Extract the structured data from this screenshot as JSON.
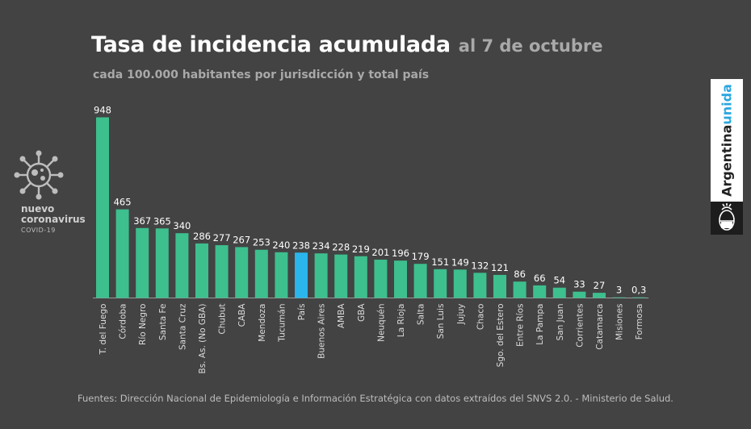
{
  "header": {
    "title": "Tasa de incidencia acumulada",
    "date": "al 7 de octubre",
    "subtitle": "cada 100.000 habitantes por jurisdicción y total país"
  },
  "brand": {
    "icon": "virus-icon",
    "line1": "nuevo",
    "line2": "coronavirus",
    "line3": "COVID-19"
  },
  "badge": {
    "text1": "Argentina",
    "text2": "unida",
    "accent_color": "#29a6e0",
    "icon": "coat-of-arms-icon"
  },
  "footer": {
    "source": "Fuentes: Dirección Nacional de Epidemiología e Información Estratégica con datos extraídos del SNVS 2.0. - Ministerio de Salud."
  },
  "chart_data": {
    "type": "bar",
    "categories": [
      "T. del Fuego",
      "Córdoba",
      "Río Negro",
      "Santa Fe",
      "Santa Cruz",
      "Bs. As. (No GBA)",
      "Chubut",
      "CABA",
      "Mendoza",
      "Tucumán",
      "País",
      "Buenos Aires",
      "AMBA",
      "GBA",
      "Neuquén",
      "La Rioja",
      "Salta",
      "San Luis",
      "Jujuy",
      "Chaco",
      "Sgo. del Estero",
      "Entre Ríos",
      "La Pampa",
      "San Juan",
      "Corrientes",
      "Catamarca",
      "Misiones",
      "Formosa"
    ],
    "values": [
      948,
      465,
      367,
      365,
      340,
      286,
      277,
      267,
      253,
      240,
      238,
      234,
      228,
      219,
      201,
      196,
      179,
      151,
      149,
      132,
      121,
      86,
      66,
      54,
      33,
      27,
      3,
      0.3
    ],
    "labels": [
      "948",
      "465",
      "367",
      "365",
      "340",
      "286",
      "277",
      "267",
      "253",
      "240",
      "238",
      "234",
      "228",
      "219",
      "201",
      "196",
      "179",
      "151",
      "149",
      "132",
      "121",
      "86",
      "66",
      "54",
      "33",
      "27",
      "3",
      "0,3"
    ],
    "highlight": "País",
    "colors": {
      "bar": "#3dbf8e",
      "highlight": "#2ab5ec",
      "baseline": "#9a9a9a"
    },
    "ylim": [
      0,
      948
    ]
  }
}
